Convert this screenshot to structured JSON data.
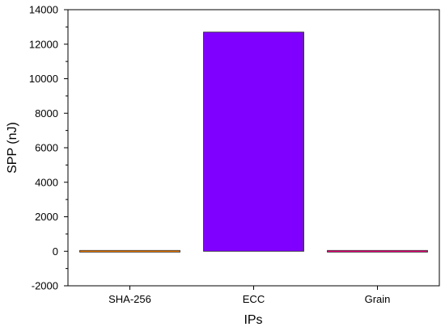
{
  "chart_data": {
    "type": "bar",
    "categories": [
      "SHA-256",
      "ECC",
      "Grain"
    ],
    "values": [
      0,
      12700,
      0
    ],
    "bar_colors": [
      "#ff8000",
      "#8000ff",
      "#ff0080"
    ],
    "xlabel": "IPs",
    "ylabel": "SPP (nJ)",
    "ylim": [
      -2000,
      14000
    ],
    "yticks": [
      -2000,
      0,
      2000,
      4000,
      6000,
      8000,
      10000,
      12000,
      14000
    ],
    "grid": false,
    "legend": "none"
  }
}
